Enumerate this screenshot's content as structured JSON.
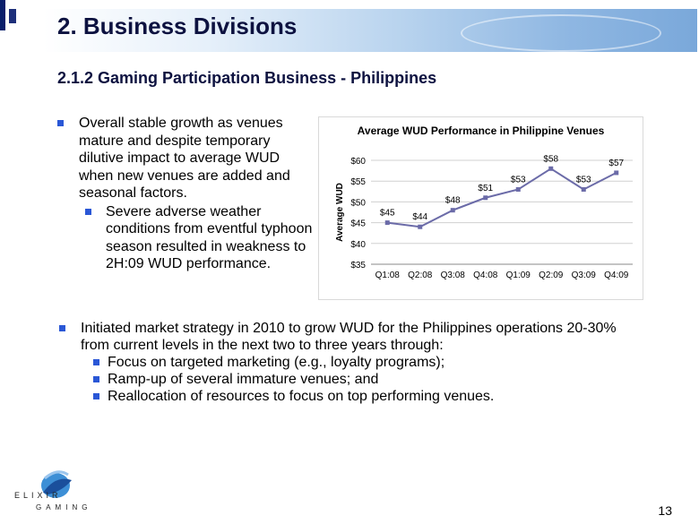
{
  "header": {
    "title": "2. Business Divisions",
    "subtitle": "2.1.2  Gaming Participation Business - Philippines"
  },
  "bullets_top": {
    "main": "Overall stable growth as venues mature and despite temporary dilutive impact to average WUD when new venues are added and seasonal factors.",
    "sub": "Severe adverse weather conditions from eventful typhoon season resulted in weakness to 2H:09 WUD performance."
  },
  "bullets_bottom": {
    "main": "Initiated market strategy in 2010 to grow WUD for the Philippines operations 20-30% from current levels in the next two to three years through:",
    "subs": [
      "Focus on targeted marketing (e.g., loyalty programs);",
      "Ramp-up of several immature venues; and",
      "Reallocation of resources to focus on top performing venues."
    ]
  },
  "logo": {
    "text_top": "ELIXIR",
    "text_bottom": "GAMING"
  },
  "page_number": "13",
  "colors": {
    "title": "#0d1240",
    "bullet": "#2a57d6",
    "series": "#6b6ba8",
    "grid": "#d0d0d0"
  },
  "chart_data": {
    "type": "line",
    "title": "Average WUD Performance in Philippine Venues",
    "ylabel": "Average WUD",
    "xlabel": "",
    "categories": [
      "Q1:08",
      "Q2:08",
      "Q3:08",
      "Q4:08",
      "Q1:09",
      "Q2:09",
      "Q3:09",
      "Q4:09"
    ],
    "values": [
      45,
      44,
      48,
      51,
      53,
      58,
      53,
      57
    ],
    "data_labels": [
      "$45",
      "$44",
      "$48",
      "$51",
      "$53",
      "$58",
      "$53",
      "$57"
    ],
    "ylim": [
      35,
      60
    ],
    "yticks": [
      35,
      40,
      45,
      50,
      55,
      60
    ],
    "ytick_labels": [
      "$35",
      "$40",
      "$45",
      "$50",
      "$55",
      "$60"
    ],
    "grid": true,
    "legend": "none"
  }
}
